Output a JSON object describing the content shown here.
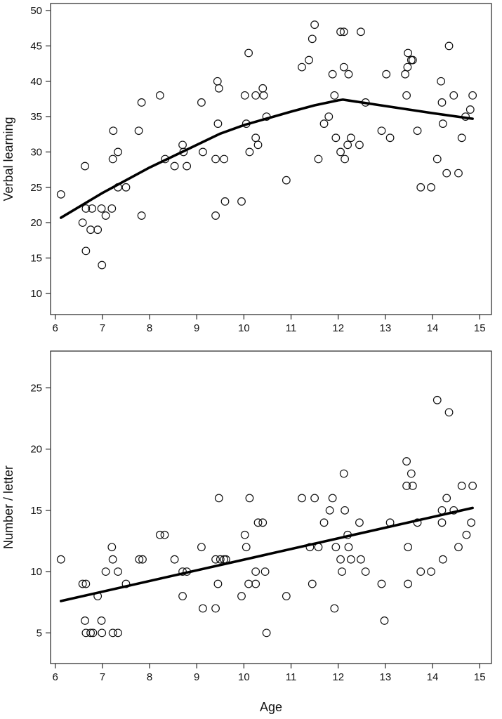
{
  "chart_data": [
    {
      "type": "scatter",
      "xlabel": "",
      "ylabel": "Verbal learning",
      "xlim": [
        5.9,
        15.25
      ],
      "ylim": [
        7,
        51
      ],
      "xticks": [
        6,
        7,
        8,
        9,
        10,
        11,
        12,
        13,
        14,
        15
      ],
      "yticks": [
        10,
        15,
        20,
        25,
        30,
        35,
        40,
        45,
        50
      ],
      "points": [
        [
          6.12,
          24
        ],
        [
          6.58,
          20
        ],
        [
          6.63,
          28
        ],
        [
          6.65,
          22
        ],
        [
          6.65,
          16
        ],
        [
          6.75,
          19
        ],
        [
          6.78,
          22
        ],
        [
          6.9,
          19
        ],
        [
          6.98,
          22
        ],
        [
          6.99,
          14
        ],
        [
          7.07,
          21
        ],
        [
          7.2,
          22
        ],
        [
          7.22,
          29
        ],
        [
          7.23,
          33
        ],
        [
          7.33,
          30
        ],
        [
          7.33,
          25
        ],
        [
          7.5,
          25
        ],
        [
          7.77,
          33
        ],
        [
          7.83,
          37
        ],
        [
          7.83,
          21
        ],
        [
          8.22,
          38
        ],
        [
          8.33,
          29
        ],
        [
          8.53,
          28
        ],
        [
          8.7,
          31
        ],
        [
          8.72,
          30
        ],
        [
          8.79,
          28
        ],
        [
          9.1,
          37
        ],
        [
          9.13,
          30
        ],
        [
          9.4,
          29
        ],
        [
          9.4,
          21
        ],
        [
          9.44,
          40
        ],
        [
          9.45,
          34
        ],
        [
          9.47,
          39
        ],
        [
          9.58,
          29
        ],
        [
          9.6,
          23
        ],
        [
          9.95,
          23
        ],
        [
          10.02,
          38
        ],
        [
          10.05,
          34
        ],
        [
          10.1,
          44
        ],
        [
          10.12,
          30
        ],
        [
          10.25,
          32
        ],
        [
          10.25,
          38
        ],
        [
          10.3,
          31
        ],
        [
          10.4,
          39
        ],
        [
          10.42,
          38
        ],
        [
          10.48,
          35
        ],
        [
          10.9,
          26
        ],
        [
          11.23,
          42
        ],
        [
          11.38,
          43
        ],
        [
          11.45,
          46
        ],
        [
          11.5,
          48
        ],
        [
          11.58,
          29
        ],
        [
          11.7,
          34
        ],
        [
          11.8,
          35
        ],
        [
          11.88,
          41
        ],
        [
          11.92,
          38
        ],
        [
          11.95,
          32
        ],
        [
          12.05,
          47
        ],
        [
          12.05,
          30
        ],
        [
          12.12,
          47
        ],
        [
          12.12,
          42
        ],
        [
          12.14,
          29
        ],
        [
          12.2,
          31
        ],
        [
          12.22,
          41
        ],
        [
          12.27,
          32
        ],
        [
          12.45,
          31
        ],
        [
          12.48,
          47
        ],
        [
          12.58,
          37
        ],
        [
          12.92,
          33
        ],
        [
          13.02,
          41
        ],
        [
          13.1,
          32
        ],
        [
          13.42,
          41
        ],
        [
          13.45,
          38
        ],
        [
          13.47,
          42
        ],
        [
          13.48,
          44
        ],
        [
          13.55,
          43
        ],
        [
          13.58,
          43
        ],
        [
          13.68,
          33
        ],
        [
          13.75,
          25
        ],
        [
          13.97,
          25
        ],
        [
          14.1,
          29
        ],
        [
          14.18,
          40
        ],
        [
          14.2,
          37
        ],
        [
          14.22,
          34
        ],
        [
          14.3,
          27
        ],
        [
          14.35,
          45
        ],
        [
          14.45,
          38
        ],
        [
          14.55,
          27
        ],
        [
          14.62,
          32
        ],
        [
          14.7,
          35
        ],
        [
          14.8,
          36
        ],
        [
          14.85,
          38
        ]
      ],
      "fit_line": [
        [
          6.12,
          20.7
        ],
        [
          7.0,
          24.2
        ],
        [
          8.0,
          27.8
        ],
        [
          9.0,
          31.0
        ],
        [
          9.5,
          32.6
        ],
        [
          10.0,
          33.8
        ],
        [
          11.0,
          35.7
        ],
        [
          11.5,
          36.6
        ],
        [
          12.0,
          37.3
        ],
        [
          12.1,
          37.4
        ],
        [
          13.0,
          36.5
        ],
        [
          14.0,
          35.5
        ],
        [
          14.85,
          34.7
        ]
      ]
    },
    {
      "type": "scatter",
      "xlabel": "Age",
      "ylabel": "Number / letter",
      "xlim": [
        5.9,
        15.25
      ],
      "ylim": [
        2.5,
        28
      ],
      "xticks": [
        6,
        7,
        8,
        9,
        10,
        11,
        12,
        13,
        14,
        15
      ],
      "yticks": [
        5,
        10,
        15,
        20,
        25
      ],
      "points": [
        [
          6.12,
          11
        ],
        [
          6.58,
          9
        ],
        [
          6.65,
          9
        ],
        [
          6.63,
          6
        ],
        [
          6.65,
          5
        ],
        [
          6.75,
          5
        ],
        [
          6.8,
          5
        ],
        [
          6.9,
          8
        ],
        [
          6.98,
          6
        ],
        [
          6.99,
          5
        ],
        [
          7.07,
          10
        ],
        [
          7.2,
          12
        ],
        [
          7.22,
          11
        ],
        [
          7.22,
          5
        ],
        [
          7.33,
          10
        ],
        [
          7.33,
          5
        ],
        [
          7.5,
          9
        ],
        [
          7.78,
          11
        ],
        [
          7.85,
          11
        ],
        [
          8.22,
          13
        ],
        [
          8.32,
          13
        ],
        [
          8.53,
          11
        ],
        [
          8.7,
          10
        ],
        [
          8.7,
          8
        ],
        [
          8.79,
          10
        ],
        [
          9.1,
          12
        ],
        [
          9.13,
          7
        ],
        [
          9.4,
          11
        ],
        [
          9.4,
          7
        ],
        [
          9.45,
          9
        ],
        [
          9.47,
          16
        ],
        [
          9.5,
          11
        ],
        [
          9.58,
          11
        ],
        [
          9.62,
          11
        ],
        [
          9.95,
          8
        ],
        [
          10.02,
          13
        ],
        [
          10.05,
          12
        ],
        [
          10.1,
          9
        ],
        [
          10.12,
          16
        ],
        [
          10.25,
          9
        ],
        [
          10.25,
          10
        ],
        [
          10.3,
          14
        ],
        [
          10.4,
          14
        ],
        [
          10.45,
          10
        ],
        [
          10.48,
          5
        ],
        [
          10.9,
          8
        ],
        [
          11.23,
          16
        ],
        [
          11.45,
          9
        ],
        [
          11.4,
          12
        ],
        [
          11.5,
          16
        ],
        [
          11.58,
          12
        ],
        [
          11.7,
          14
        ],
        [
          11.82,
          15
        ],
        [
          11.88,
          16
        ],
        [
          11.92,
          7
        ],
        [
          11.95,
          12
        ],
        [
          12.05,
          11
        ],
        [
          12.08,
          10
        ],
        [
          12.12,
          18
        ],
        [
          12.14,
          15
        ],
        [
          12.2,
          13
        ],
        [
          12.22,
          12
        ],
        [
          12.27,
          11
        ],
        [
          12.45,
          14
        ],
        [
          12.48,
          11
        ],
        [
          12.58,
          10
        ],
        [
          12.92,
          9
        ],
        [
          12.98,
          6
        ],
        [
          13.1,
          14
        ],
        [
          13.45,
          19
        ],
        [
          13.45,
          17
        ],
        [
          13.48,
          12
        ],
        [
          13.48,
          9
        ],
        [
          13.55,
          18
        ],
        [
          13.58,
          17
        ],
        [
          13.68,
          14
        ],
        [
          13.75,
          10
        ],
        [
          13.97,
          10
        ],
        [
          14.1,
          24
        ],
        [
          14.2,
          15
        ],
        [
          14.2,
          14
        ],
        [
          14.22,
          11
        ],
        [
          14.3,
          16
        ],
        [
          14.35,
          23
        ],
        [
          14.45,
          15
        ],
        [
          14.55,
          12
        ],
        [
          14.62,
          17
        ],
        [
          14.72,
          13
        ],
        [
          14.82,
          14
        ],
        [
          14.85,
          17
        ]
      ],
      "fit_line": [
        [
          6.12,
          7.6
        ],
        [
          14.85,
          15.2
        ]
      ]
    }
  ]
}
